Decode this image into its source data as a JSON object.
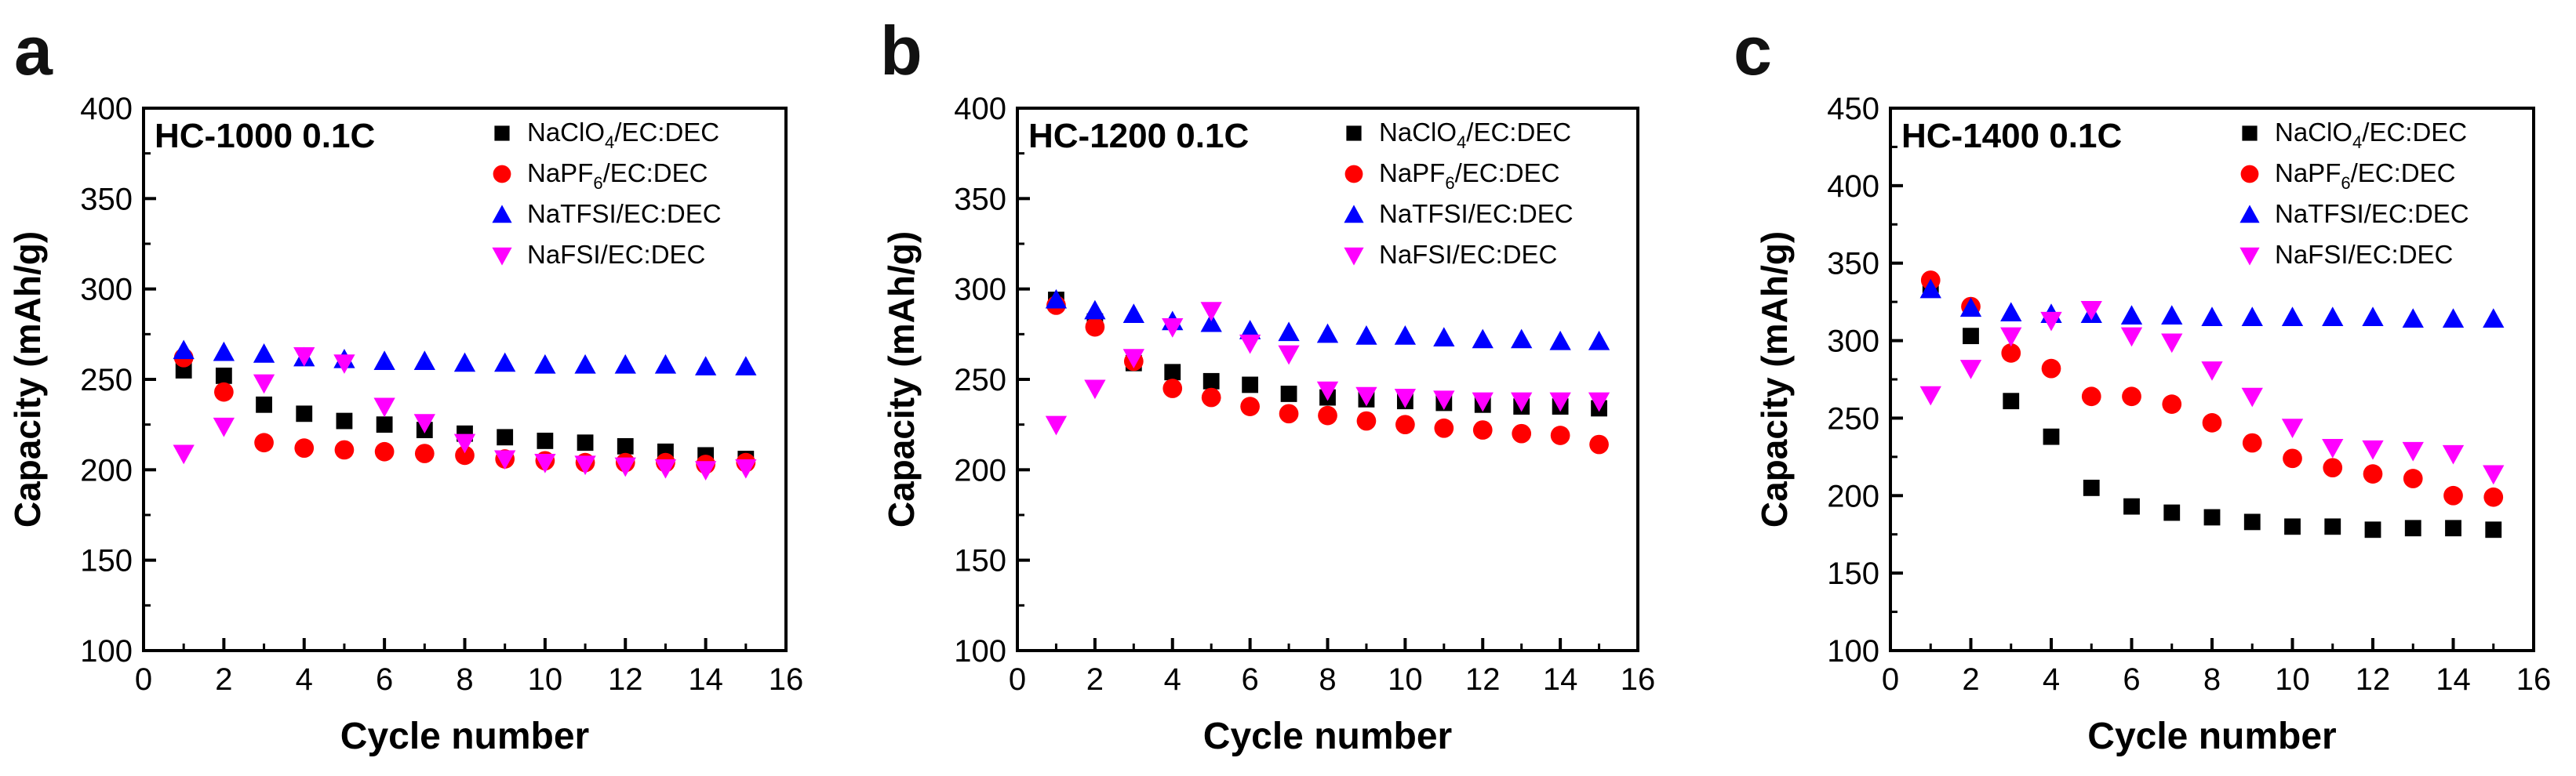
{
  "chart_data": [
    {
      "panel_label": "a",
      "type": "scatter",
      "title": "HC-1000 0.1C",
      "xlabel": "Cycle number",
      "ylabel": "Capacity (mAh/g)",
      "xlim": [
        0,
        16
      ],
      "ylim": [
        100,
        400
      ],
      "xticks": [
        0,
        2,
        4,
        6,
        8,
        10,
        12,
        14,
        16
      ],
      "yticks": [
        100,
        150,
        200,
        250,
        300,
        350,
        400
      ],
      "legend_position": "top-right",
      "x": [
        1,
        2,
        3,
        4,
        5,
        6,
        7,
        8,
        9,
        10,
        11,
        12,
        13,
        14,
        15
      ],
      "series": [
        {
          "name": "NaClO",
          "sub": "4",
          "rest": "/EC:DEC",
          "marker": "square",
          "color": "#000000",
          "values": [
            255,
            252,
            236,
            231,
            227,
            225,
            222,
            220,
            218,
            216,
            215,
            213,
            210,
            208,
            206
          ]
        },
        {
          "name": "NaPF",
          "sub": "6",
          "rest": "/EC:DEC",
          "marker": "circle",
          "color": "#ff0000",
          "values": [
            262,
            243,
            215,
            212,
            211,
            210,
            209,
            208,
            206,
            205,
            204,
            204,
            204,
            203,
            204
          ]
        },
        {
          "name": "NaTFSI/EC:DEC",
          "sub": "",
          "rest": "",
          "marker": "triangle-up",
          "color": "#0000ff",
          "values": [
            266,
            265,
            264,
            262,
            261,
            260,
            260,
            259,
            259,
            258,
            258,
            258,
            258,
            257,
            257
          ]
        },
        {
          "name": "NaFSI/EC:DEC",
          "sub": "",
          "rest": "",
          "marker": "triangle-down",
          "color": "#ff00ff",
          "values": [
            209,
            224,
            248,
            263,
            259,
            235,
            226,
            215,
            206,
            204,
            203,
            202,
            201,
            200,
            201
          ]
        }
      ]
    },
    {
      "panel_label": "b",
      "type": "scatter",
      "title": "HC-1200 0.1C",
      "xlabel": "Cycle number",
      "ylabel": "Capacity (mAh/g)",
      "xlim": [
        0,
        16
      ],
      "ylim": [
        100,
        400
      ],
      "xticks": [
        0,
        2,
        4,
        6,
        8,
        10,
        12,
        14,
        16
      ],
      "yticks": [
        100,
        150,
        200,
        250,
        300,
        350,
        400
      ],
      "legend_position": "top-right",
      "x": [
        1,
        2,
        3,
        4,
        5,
        6,
        7,
        8,
        9,
        10,
        11,
        12,
        13,
        14,
        15
      ],
      "series": [
        {
          "name": "NaClO",
          "sub": "4",
          "rest": "/EC:DEC",
          "marker": "square",
          "color": "#000000",
          "values": [
            294,
            282,
            259,
            254,
            249,
            247,
            242,
            240,
            239,
            238,
            237,
            236,
            235,
            235,
            234
          ]
        },
        {
          "name": "NaPF",
          "sub": "6",
          "rest": "/EC:DEC",
          "marker": "circle",
          "color": "#ff0000",
          "values": [
            291,
            279,
            260,
            245,
            240,
            235,
            231,
            230,
            227,
            225,
            223,
            222,
            220,
            219,
            214
          ]
        },
        {
          "name": "NaTFSI/EC:DEC",
          "sub": "",
          "rest": "",
          "marker": "triangle-up",
          "color": "#0000ff",
          "values": [
            294,
            288,
            286,
            282,
            281,
            277,
            276,
            275,
            274,
            274,
            273,
            272,
            272,
            271,
            271
          ]
        },
        {
          "name": "NaFSI/EC:DEC",
          "sub": "",
          "rest": "",
          "marker": "triangle-down",
          "color": "#ff00ff",
          "values": [
            225,
            245,
            262,
            279,
            288,
            270,
            264,
            244,
            241,
            240,
            239,
            238,
            238,
            238,
            238
          ]
        }
      ]
    },
    {
      "panel_label": "c",
      "type": "scatter",
      "title": "HC-1400 0.1C",
      "xlabel": "Cycle number",
      "ylabel": "Capacity (mAh/g)",
      "xlim": [
        0,
        16
      ],
      "ylim": [
        100,
        450
      ],
      "xticks": [
        0,
        2,
        4,
        6,
        8,
        10,
        12,
        14,
        16
      ],
      "yticks": [
        100,
        150,
        200,
        250,
        300,
        350,
        400,
        450
      ],
      "legend_position": "top-right",
      "x": [
        1,
        2,
        3,
        4,
        5,
        6,
        7,
        8,
        9,
        10,
        11,
        12,
        13,
        14,
        15
      ],
      "series": [
        {
          "name": "NaClO",
          "sub": "4",
          "rest": "/EC:DEC",
          "marker": "square",
          "color": "#000000",
          "values": [
            336,
            303,
            261,
            238,
            205,
            193,
            189,
            186,
            183,
            180,
            180,
            178,
            179,
            179,
            178
          ]
        },
        {
          "name": "NaPF",
          "sub": "6",
          "rest": "/EC:DEC",
          "marker": "circle",
          "color": "#ff0000",
          "values": [
            339,
            322,
            292,
            282,
            264,
            264,
            259,
            247,
            234,
            224,
            218,
            214,
            211,
            200,
            199
          ]
        },
        {
          "name": "NaTFSI/EC:DEC",
          "sub": "",
          "rest": "",
          "marker": "triangle-up",
          "color": "#0000ff",
          "values": [
            333,
            321,
            318,
            317,
            317,
            316,
            316,
            315,
            315,
            315,
            315,
            315,
            314,
            314,
            314
          ]
        },
        {
          "name": "NaFSI/EC:DEC",
          "sub": "",
          "rest": "",
          "marker": "triangle-down",
          "color": "#ff00ff",
          "values": [
            265,
            282,
            303,
            313,
            320,
            303,
            299,
            281,
            264,
            244,
            231,
            230,
            229,
            227,
            214
          ]
        }
      ]
    }
  ]
}
